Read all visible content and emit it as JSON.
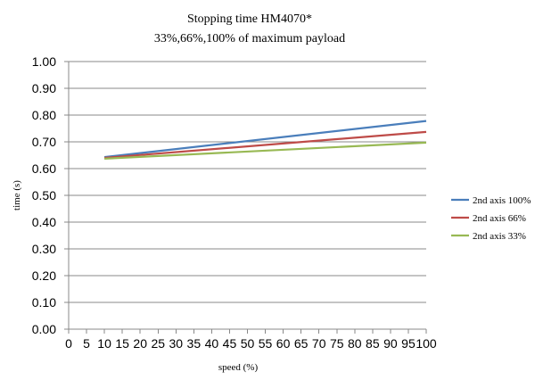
{
  "chart_data": {
    "type": "line",
    "title": "Stopping time HM4070*",
    "subtitle": "33%,66%,100% of maximum payload",
    "xlabel": "speed (%)",
    "ylabel": "time (s)",
    "xlim": [
      0,
      100
    ],
    "ylim": [
      0,
      1
    ],
    "x_ticks": [
      "0",
      "5",
      "10",
      "15",
      "20",
      "25",
      "30",
      "35",
      "40",
      "45",
      "50",
      "55",
      "60",
      "65",
      "70",
      "75",
      "80",
      "85",
      "90",
      "95",
      "100"
    ],
    "y_ticks": [
      "0.00",
      "0.10",
      "0.20",
      "0.30",
      "0.40",
      "0.50",
      "0.60",
      "0.70",
      "0.80",
      "0.90",
      "1.00"
    ],
    "grid": "horizontal",
    "legend_position": "right",
    "series": [
      {
        "name": "2nd axis 100%",
        "color": "#4a7ebb",
        "x": [
          10,
          100
        ],
        "y": [
          0.643,
          0.778
        ]
      },
      {
        "name": "2nd axis 66%",
        "color": "#be4b48",
        "x": [
          10,
          100
        ],
        "y": [
          0.64,
          0.737
        ]
      },
      {
        "name": "2nd axis 33%",
        "color": "#98b954",
        "x": [
          10,
          100
        ],
        "y": [
          0.637,
          0.697
        ]
      }
    ]
  }
}
